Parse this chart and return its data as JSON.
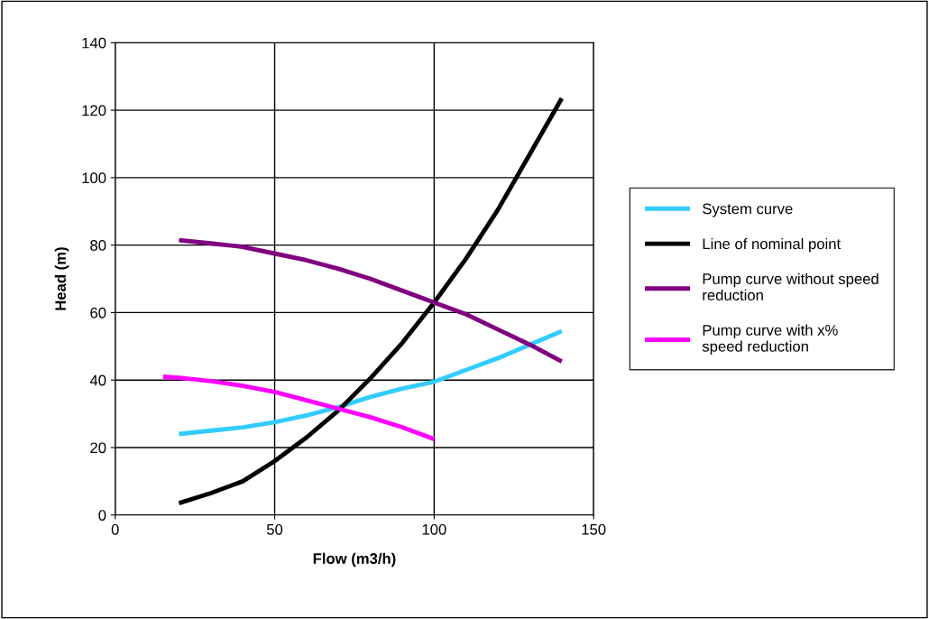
{
  "chart_data": {
    "type": "line",
    "xlabel": "Flow (m3/h)",
    "ylabel": "Head (m)",
    "xlim": [
      0,
      150
    ],
    "xticks": [
      0,
      50,
      100,
      150
    ],
    "ylim": [
      0,
      140
    ],
    "yticks": [
      0,
      20,
      40,
      60,
      80,
      100,
      120,
      140
    ],
    "grid": true,
    "legend": "right",
    "marker": "none",
    "line_style": "solid",
    "series": [
      {
        "name": "System curve",
        "color": "#33ccff",
        "x": [
          20,
          30,
          40,
          50,
          60,
          70,
          80,
          90,
          100,
          110,
          120,
          130,
          140
        ],
        "values": [
          24,
          25,
          26,
          27.5,
          29.5,
          32,
          35,
          37.5,
          39.5,
          43,
          46.5,
          50.5,
          54.5
        ]
      },
      {
        "name": "Line of nominal point",
        "color": "#000000",
        "x": [
          20,
          30,
          40,
          50,
          60,
          70,
          80,
          90,
          100,
          110,
          120,
          130,
          140
        ],
        "values": [
          3.5,
          6.5,
          10,
          16,
          23,
          31,
          40.5,
          51,
          63,
          76,
          90.5,
          107,
          123.5
        ]
      },
      {
        "name": "Pump curve without speed reduction",
        "color": "#800080",
        "x": [
          20,
          30,
          40,
          50,
          60,
          70,
          80,
          90,
          100,
          110,
          120,
          130,
          140
        ],
        "values": [
          81.5,
          80.5,
          79.5,
          77.5,
          75.5,
          73,
          70,
          66.5,
          63,
          59.5,
          55,
          50.5,
          45.5
        ]
      },
      {
        "name": "Pump curve with x% speed reduction",
        "color": "#ff00ff",
        "x": [
          15,
          20,
          30,
          40,
          50,
          60,
          70,
          80,
          90,
          100
        ],
        "values": [
          41,
          40.7,
          39.7,
          38.3,
          36.5,
          34,
          31.5,
          29,
          26,
          22.5
        ]
      }
    ]
  }
}
